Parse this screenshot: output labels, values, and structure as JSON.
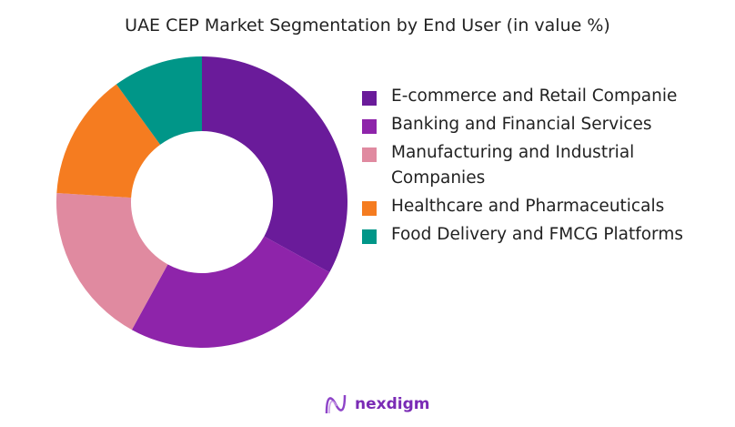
{
  "chart_data": {
    "type": "pie",
    "title": "UAE CEP Market Segmentation by End User (in value %)",
    "categories": [
      "E-commerce and Retail Companie",
      "Banking and Financial Services",
      "Manufacturing and Industrial Companies",
      "Healthcare and Pharmaceuticals",
      "Food Delivery and FMCG Platforms"
    ],
    "values": [
      33,
      25,
      18,
      14,
      10
    ],
    "colors": [
      "#6a1b9a",
      "#8e24aa",
      "#e08aa0",
      "#f57c20",
      "#009688"
    ],
    "donut": true,
    "legend_position": "right"
  },
  "brand": {
    "name": "nexdigm"
  }
}
